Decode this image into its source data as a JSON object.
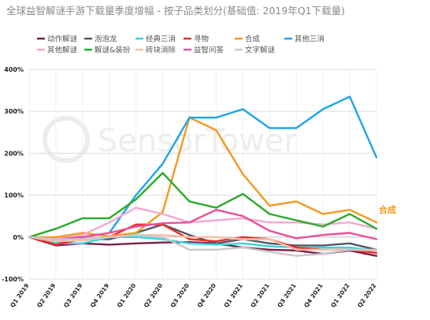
{
  "title": "全球益智解谜手游下载量季度增幅 - 按子品类划分(基础值: 2019年Q1下载量)",
  "watermark": "SensorTower",
  "chart_data": {
    "type": "line",
    "title": "全球益智解谜手游下载量季度增幅 - 按子品类划分(基础值: 2019年Q1下载量)",
    "x": [
      "Q1 2019",
      "Q2 2019",
      "Q3 2019",
      "Q4 2019",
      "Q1 2020",
      "Q2 2020",
      "Q3 2020",
      "Q4 2020",
      "Q1 2021",
      "Q2 2021",
      "Q3 2021",
      "Q4 2021",
      "Q1 2022",
      "Q2 2022"
    ],
    "ylim": [
      -100,
      400
    ],
    "yticks": [
      -100,
      0,
      100,
      200,
      300,
      400
    ],
    "ytick_labels": [
      "-100%",
      "0%",
      "100%",
      "200%",
      "300%",
      "400%"
    ],
    "grid": true,
    "legend_position": "top",
    "end_annotation": {
      "series": "合成",
      "text": "合成"
    },
    "series": [
      {
        "name": "动作解谜",
        "color": "#7a1e48",
        "values": [
          0,
          -20,
          -15,
          -18,
          -15,
          -13,
          -12,
          -15,
          -25,
          -30,
          -32,
          -40,
          -32,
          -45
        ]
      },
      {
        "name": "泡泡龙",
        "color": "#555566",
        "values": [
          0,
          -15,
          -5,
          -5,
          10,
          30,
          5,
          -15,
          -5,
          -15,
          -20,
          -20,
          -15,
          -30
        ]
      },
      {
        "name": "经典三消",
        "color": "#35d7dd",
        "values": [
          0,
          -15,
          -15,
          0,
          0,
          -5,
          -15,
          -18,
          -15,
          -22,
          -25,
          -25,
          -25,
          -32
        ]
      },
      {
        "name": "寻物",
        "color": "#e8302c",
        "values": [
          0,
          -18,
          -5,
          0,
          30,
          30,
          -5,
          -10,
          0,
          -5,
          -25,
          -30,
          -30,
          -38
        ]
      },
      {
        "name": "合成",
        "color": "#f5981e",
        "values": [
          0,
          0,
          10,
          2,
          10,
          60,
          285,
          255,
          150,
          75,
          85,
          55,
          65,
          35
        ]
      },
      {
        "name": "其他三消",
        "color": "#1ea4e9",
        "values": [
          0,
          -5,
          0,
          10,
          100,
          175,
          285,
          285,
          305,
          260,
          260,
          305,
          335,
          190
        ]
      },
      {
        "name": "其他解谜",
        "color": "#f6a8cf",
        "values": [
          0,
          -5,
          5,
          35,
          70,
          55,
          35,
          40,
          45,
          35,
          35,
          30,
          35,
          20
        ]
      },
      {
        "name": "解谜&装扮",
        "color": "#2aab2a",
        "values": [
          0,
          20,
          45,
          45,
          90,
          153,
          85,
          70,
          103,
          55,
          40,
          25,
          55,
          20
        ]
      },
      {
        "name": "砖块消除",
        "color": "#f8c0aa",
        "values": [
          0,
          -10,
          -8,
          0,
          5,
          5,
          0,
          0,
          -5,
          -5,
          -30,
          -30,
          -30,
          -30
        ]
      },
      {
        "name": "益智问答",
        "color": "#e84f9b",
        "values": [
          0,
          -5,
          0,
          10,
          25,
          33,
          35,
          65,
          50,
          15,
          -3,
          5,
          10,
          -5
        ]
      },
      {
        "name": "文字解谜",
        "color": "#c8c8c8",
        "values": [
          0,
          -5,
          -5,
          0,
          5,
          0,
          -30,
          -30,
          -25,
          -35,
          -45,
          -40,
          -30,
          -32
        ]
      }
    ]
  }
}
